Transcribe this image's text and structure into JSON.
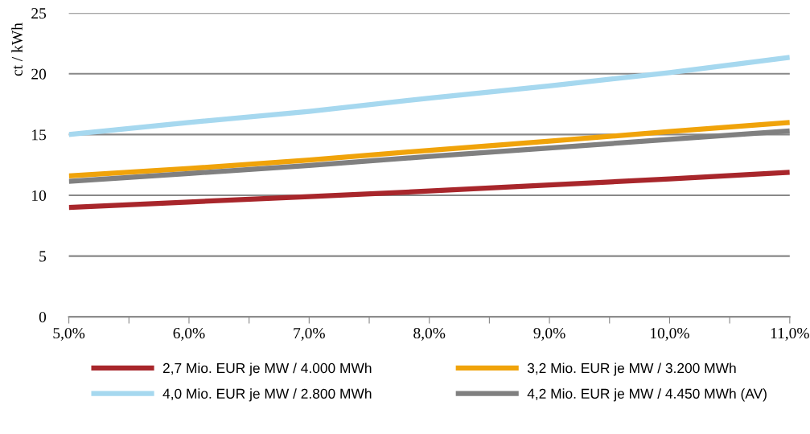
{
  "chart_data": {
    "type": "line",
    "ylabel": "ct / kWh",
    "x": [
      5,
      6,
      7,
      8,
      9,
      10,
      11
    ],
    "xlim": [
      5,
      11
    ],
    "xticks": [
      {
        "value": 5,
        "label": "5,0%"
      },
      {
        "value": 5.5,
        "label": null
      },
      {
        "value": 6,
        "label": "6,0%"
      },
      {
        "value": 6.5,
        "label": null
      },
      {
        "value": 7,
        "label": "7,0%"
      },
      {
        "value": 7.5,
        "label": null
      },
      {
        "value": 8,
        "label": "8,0%"
      },
      {
        "value": 8.5,
        "label": null
      },
      {
        "value": 9,
        "label": "9,0%"
      },
      {
        "value": 9.5,
        "label": null
      },
      {
        "value": 10,
        "label": "10,0%"
      },
      {
        "value": 10.5,
        "label": null
      },
      {
        "value": 11,
        "label": "11,0%"
      }
    ],
    "ylim": [
      0,
      25
    ],
    "yticks": [
      0,
      5,
      10,
      15,
      20,
      25
    ],
    "grid": "y",
    "legend": "bottom",
    "marker": "none",
    "line_style": "solid",
    "series": [
      {
        "name": "2,7 Mio. EUR je MW / 4.000 MWh",
        "color": "#a8262b",
        "values": [
          9.0,
          9.45,
          9.9,
          10.35,
          10.85,
          11.35,
          11.9
        ]
      },
      {
        "name": "3,2 Mio. EUR je MW / 3.200 MWh",
        "color": "#f0a30a",
        "values": [
          11.6,
          12.2,
          12.9,
          13.7,
          14.45,
          15.25,
          16.0
        ]
      },
      {
        "name": "4,0 Mio. EUR je MW / 2.800 MWh",
        "color": "#a6d8ef",
        "values": [
          15.0,
          16.0,
          16.9,
          18.0,
          19.0,
          20.1,
          21.35
        ]
      },
      {
        "name": "4,2 Mio. EUR je MW / 4.450 MWh (AV)",
        "color": "#808080",
        "values": [
          11.15,
          11.8,
          12.45,
          13.2,
          13.9,
          14.6,
          15.3
        ]
      }
    ]
  }
}
